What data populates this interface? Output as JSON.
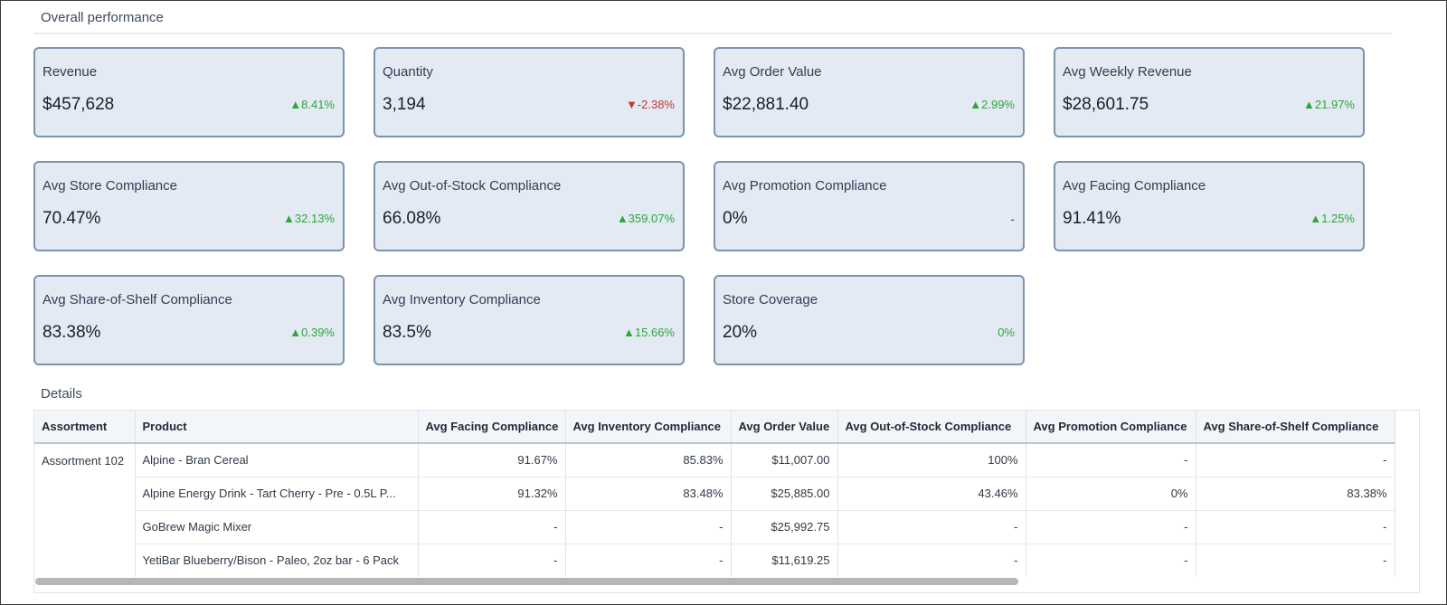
{
  "section_overall": "Overall performance",
  "section_details": "Details",
  "kpis": [
    {
      "label": "Revenue",
      "value": "$457,628",
      "delta": "▲8.41%",
      "trend": "up"
    },
    {
      "label": "Quantity",
      "value": "3,194",
      "delta": "▼-2.38%",
      "trend": "down"
    },
    {
      "label": "Avg Order Value",
      "value": "$22,881.40",
      "delta": "▲2.99%",
      "trend": "up"
    },
    {
      "label": "Avg Weekly Revenue",
      "value": "$28,601.75",
      "delta": "▲21.97%",
      "trend": "up"
    },
    {
      "label": "Avg Store Compliance",
      "value": "70.47%",
      "delta": "▲32.13%",
      "trend": "up"
    },
    {
      "label": "Avg Out-of-Stock Compliance",
      "value": "66.08%",
      "delta": "▲359.07%",
      "trend": "up"
    },
    {
      "label": "Avg Promotion Compliance",
      "value": "0%",
      "delta": "-",
      "trend": "neutral"
    },
    {
      "label": "Avg Facing Compliance",
      "value": "91.41%",
      "delta": "▲1.25%",
      "trend": "up"
    },
    {
      "label": "Avg Share-of-Shelf Compliance",
      "value": "83.38%",
      "delta": "▲0.39%",
      "trend": "up"
    },
    {
      "label": "Avg Inventory Compliance",
      "value": "83.5%",
      "delta": "▲15.66%",
      "trend": "up"
    },
    {
      "label": "Store Coverage",
      "value": "20%",
      "delta": "0%",
      "trend": "up"
    }
  ],
  "table": {
    "headers": [
      "Assortment",
      "Product",
      "Avg Facing Compliance",
      "Avg Inventory Compliance",
      "Avg Order Value",
      "Avg Out-of-Stock Compliance",
      "Avg Promotion Compliance",
      "Avg Share-of-Shelf Compliance"
    ],
    "group_label": "Assortment 102",
    "rows": [
      [
        "Alpine - Bran Cereal",
        "91.67%",
        "85.83%",
        "$11,007.00",
        "100%",
        "-",
        "-"
      ],
      [
        "Alpine Energy Drink - Tart Cherry - Pre - 0.5L P...",
        "91.32%",
        "83.48%",
        "$25,885.00",
        "43.46%",
        "0%",
        "83.38%"
      ],
      [
        "GoBrew Magic Mixer",
        "-",
        "-",
        "$25,992.75",
        "-",
        "-",
        "-"
      ],
      [
        "YetiBar Blueberry/Bison - Paleo, 2oz bar - 6 Pack",
        "-",
        "-",
        "$11,619.25",
        "-",
        "-",
        "-"
      ]
    ]
  },
  "colors": {
    "up": "#2aa838",
    "down": "#c23934",
    "card_bg": "#e3eaf3",
    "card_border": "#7c93ae"
  }
}
